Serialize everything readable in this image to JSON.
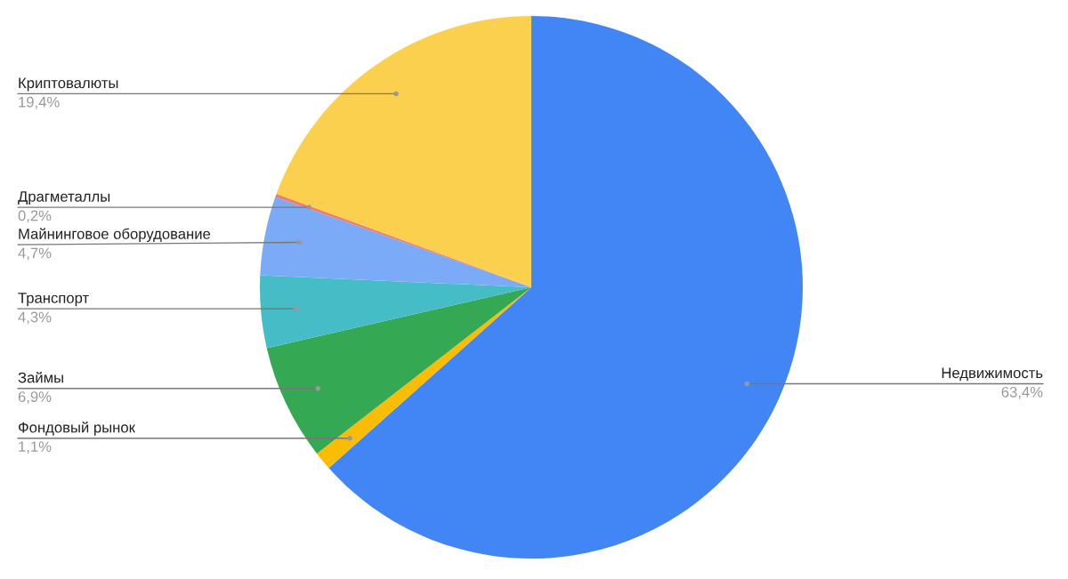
{
  "chart_data": {
    "type": "pie",
    "categories": [
      "Недвижимость",
      "Фондовый рынок",
      "Займы",
      "Транспорт",
      "Майнинговое оборудование",
      "Драгметаллы",
      "Криптовалюты"
    ],
    "values": [
      63.4,
      1.1,
      6.9,
      4.3,
      4.7,
      0.2,
      19.4
    ],
    "value_labels": [
      "63,4%",
      "1,1%",
      "6,9%",
      "4,3%",
      "4,7%",
      "0,2%",
      "19,4%"
    ],
    "colors": [
      "#4285f4",
      "#fbbc04",
      "#34a853",
      "#46bdc6",
      "#7baaf7",
      "#f07b72",
      "#fcd04f"
    ],
    "legend": false
  }
}
